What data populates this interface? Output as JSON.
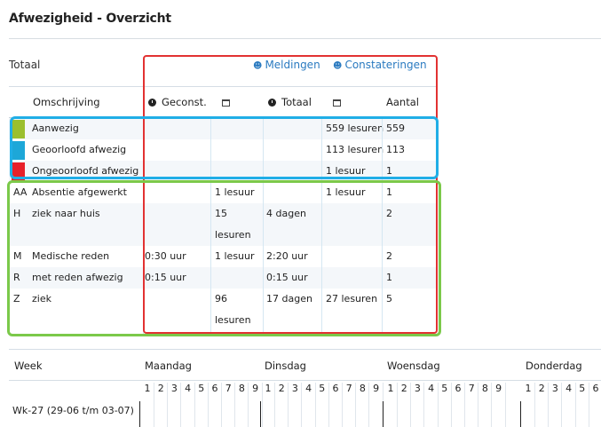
{
  "page": {
    "title": "Afwezigheid - Overzicht"
  },
  "summary": {
    "label": "Totaal",
    "links": [
      {
        "label": "Meldingen",
        "icon": "user-alert-icon"
      },
      {
        "label": "Constateringen",
        "icon": "user-search-icon"
      }
    ]
  },
  "table": {
    "headers": {
      "omschrijving": "Omschrijving",
      "geconst": "Geconst.",
      "totaal": "Totaal",
      "aantal": "Aantal"
    },
    "rows": [
      {
        "code": "",
        "color": "#9bbf2e",
        "desc": "Aanwezig",
        "geconst_time": "",
        "geconst_date": "",
        "totaal_time": "",
        "totaal_date": "559 lesuren",
        "aantal": "559"
      },
      {
        "code": "",
        "color": "#1da7d8",
        "desc": "Geoorloofd afwezig",
        "geconst_time": "",
        "geconst_date": "",
        "totaal_time": "",
        "totaal_date": "113 lesuren",
        "aantal": "113"
      },
      {
        "code": "",
        "color": "#e8202a",
        "desc": "Ongeoorloofd afwezig",
        "geconst_time": "",
        "geconst_date": "",
        "totaal_time": "",
        "totaal_date": "1 lesuur",
        "aantal": "1"
      },
      {
        "code": "AA",
        "color": "",
        "desc": "Absentie afgewerkt",
        "geconst_time": "",
        "geconst_date": "1 lesuur",
        "totaal_time": "",
        "totaal_date": "1 lesuur",
        "aantal": "1"
      },
      {
        "code": "H",
        "color": "",
        "desc": "ziek naar huis",
        "geconst_time": "",
        "geconst_date": "15",
        "geconst_date_2": "lesuren",
        "totaal_time": "4 dagen",
        "totaal_date": "",
        "aantal": "2"
      },
      {
        "code": "M",
        "color": "",
        "desc": "Medische reden",
        "geconst_time": "0:30 uur",
        "geconst_date": "1 lesuur",
        "totaal_time": "2:20 uur",
        "totaal_date": "",
        "aantal": "2"
      },
      {
        "code": "R",
        "color": "",
        "desc": "met reden afwezig",
        "geconst_time": "0:15 uur",
        "geconst_date": "",
        "totaal_time": "0:15 uur",
        "totaal_date": "",
        "aantal": "1"
      },
      {
        "code": "Z",
        "color": "",
        "desc": "ziek",
        "geconst_time": "",
        "geconst_date": "96",
        "geconst_date_2": "lesuren",
        "totaal_time": "17 dagen",
        "totaal_date": "27 lesuren",
        "aantal": "5"
      }
    ]
  },
  "week_table": {
    "headers": {
      "week": "Week",
      "days": [
        "Maandag",
        "Dinsdag",
        "Woensdag",
        "Donderdag"
      ]
    },
    "periods": [
      "1",
      "2",
      "3",
      "4",
      "5",
      "6",
      "7",
      "8",
      "9"
    ],
    "week_label": "Wk-27 (29-06 t/m 03-07)"
  }
}
